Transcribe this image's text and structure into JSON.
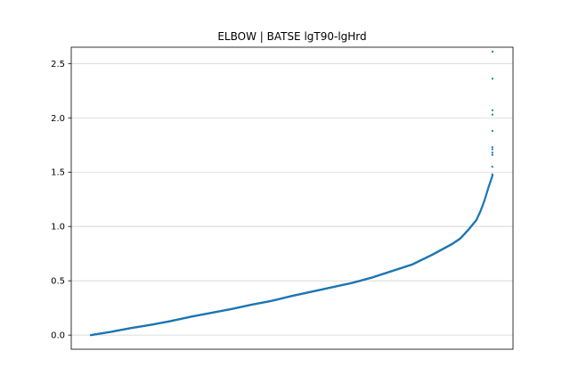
{
  "chart_data": {
    "type": "scatter",
    "title": "ELBOW | BATSE lgT90-lgHrd",
    "xlabel": "",
    "ylabel": "",
    "xlim": [
      0,
      1
    ],
    "ylim": [
      -0.13,
      2.65
    ],
    "grid": "horizontal",
    "xticks_visible": false,
    "yticks": [
      0.0,
      0.5,
      1.0,
      1.5,
      2.0,
      2.5
    ],
    "ytick_labels": [
      "0.0",
      "0.5",
      "1.0",
      "1.5",
      "2.0",
      "2.5"
    ],
    "marker_color": "#1f77b4",
    "n_points": 1950,
    "curve_x": [
      0.0,
      0.05,
      0.1,
      0.15,
      0.2,
      0.25,
      0.3,
      0.35,
      0.4,
      0.45,
      0.5,
      0.55,
      0.6,
      0.65,
      0.7,
      0.75,
      0.8,
      0.85,
      0.88,
      0.9,
      0.92,
      0.94,
      0.96,
      0.97,
      0.98,
      0.99,
      1.0
    ],
    "curve_y": [
      0.0,
      0.03,
      0.065,
      0.095,
      0.13,
      0.17,
      0.205,
      0.24,
      0.28,
      0.315,
      0.36,
      0.4,
      0.44,
      0.48,
      0.53,
      0.59,
      0.65,
      0.74,
      0.8,
      0.84,
      0.89,
      0.97,
      1.06,
      1.14,
      1.24,
      1.36,
      1.47
    ],
    "outliers_y": [
      1.48,
      1.55,
      1.66,
      1.68,
      1.71,
      1.73,
      1.88,
      2.03,
      2.07,
      2.36,
      2.61
    ]
  }
}
